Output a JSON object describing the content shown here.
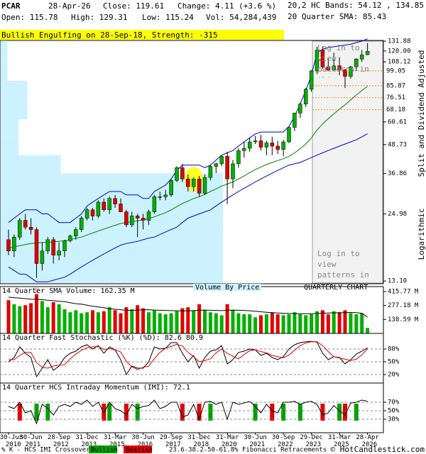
{
  "header": {
    "symbol": "PCAR",
    "date": "28-Apr-26",
    "close": "Close: 119.61",
    "change": "Change: 4.11 (+3.6 %)",
    "open": "Open: 115.78",
    "high": "High: 129.31",
    "low": "Low: 115.24",
    "volume": "Vol: 54,284,439",
    "bands": "20,2 HC Bands: 54.12 , 134.85",
    "bands_color": "#0000cc",
    "sma": "20 Quarter SMA: 85.43",
    "sma_color": "#008000"
  },
  "banner": "Bullish Engulfing on 28-Sep-18, Strength: -315",
  "chart_data": [
    {
      "type": "candlestick",
      "categories": [
        "30-Jun 2010",
        null,
        null,
        null,
        "30-Jun 2011",
        null,
        null,
        null,
        null,
        "28-Sep 2012",
        null,
        null,
        null,
        null,
        "31-Dec 2013",
        null,
        null,
        null,
        null,
        "31-Mar 2015",
        null,
        null,
        null,
        null,
        "30-Jun 2016",
        null,
        null,
        null,
        null,
        "29-Sep 2017",
        null,
        null,
        null,
        null,
        "31-Dec 2018",
        null,
        null,
        null,
        null,
        "31-Mar 2020",
        null,
        null,
        null,
        null,
        "30-Jun 2021",
        null,
        null,
        null,
        null,
        "30-Sep 2022",
        null,
        null,
        null,
        null,
        "29-Dec 2023",
        null,
        null,
        null,
        null,
        "31-Mar 2025",
        null,
        null,
        null,
        null,
        "28-Apr 2026"
      ],
      "open": [
        19.5,
        17.5,
        20.0,
        23.5,
        22.0,
        21.5,
        15.5,
        17.5,
        19.5,
        16.8,
        17.5,
        19.3,
        20.2,
        21.5,
        24.0,
        26.0,
        24.5,
        28.0,
        26.0,
        29.0,
        27.5,
        25.5,
        22.5,
        24.5,
        24.0,
        23.5,
        25.5,
        29.5,
        29.5,
        30.0,
        34.5,
        39.0,
        35.0,
        32.5,
        35.0,
        30.5,
        35.5,
        39.5,
        40.5,
        43.5,
        35.0,
        40.5,
        46.0,
        47.0,
        50.0,
        50.5,
        47.5,
        49.5,
        48.0,
        46.5,
        50.0,
        57.5,
        66.0,
        72.0,
        83.0,
        99.0,
        121.0,
        103.0,
        100.0,
        104.0,
        100.0,
        94.0,
        103.0,
        111.0,
        115.78
      ],
      "high": [
        21.5,
        20.5,
        24.0,
        25.0,
        24.0,
        22.0,
        19.0,
        20.0,
        20.0,
        19.0,
        19.5,
        20.5,
        22.0,
        24.5,
        26.5,
        26.5,
        28.5,
        29.0,
        29.5,
        30.0,
        29.0,
        26.0,
        25.5,
        25.0,
        25.0,
        26.0,
        30.0,
        31.0,
        31.5,
        35.0,
        39.5,
        40.5,
        36.5,
        35.5,
        36.0,
        36.5,
        40.0,
        41.0,
        44.0,
        45.5,
        42.0,
        47.0,
        50.0,
        52.0,
        53.0,
        53.5,
        50.5,
        52.5,
        50.5,
        51.0,
        58.0,
        66.0,
        73.0,
        84.0,
        100.0,
        125.0,
        125.5,
        112.0,
        118.0,
        113.0,
        101.0,
        104.0,
        112.0,
        121.0,
        129.31
      ],
      "low": [
        16.8,
        16.5,
        19.5,
        21.5,
        20.5,
        13.5,
        14.5,
        17.0,
        15.5,
        16.0,
        16.5,
        19.0,
        19.5,
        21.0,
        23.5,
        23.5,
        24.0,
        25.5,
        25.0,
        26.5,
        25.5,
        22.0,
        22.0,
        20.0,
        21.5,
        22.5,
        25.0,
        28.5,
        28.5,
        29.5,
        34.0,
        34.0,
        31.0,
        31.0,
        29.5,
        30.0,
        34.5,
        37.0,
        39.5,
        27.5,
        32.0,
        39.0,
        43.0,
        45.5,
        49.0,
        46.0,
        44.0,
        44.0,
        44.5,
        43.5,
        49.5,
        55.5,
        63.0,
        70.0,
        81.0,
        96.0,
        101.0,
        99.0,
        99.0,
        95.0,
        84.0,
        92.0,
        99.0,
        108.0,
        115.24
      ],
      "close": [
        17.5,
        20.0,
        23.5,
        22.0,
        21.5,
        15.5,
        17.5,
        19.5,
        16.8,
        17.5,
        19.3,
        20.2,
        21.5,
        24.0,
        26.0,
        24.5,
        28.0,
        26.0,
        29.0,
        27.5,
        25.5,
        22.5,
        24.5,
        24.0,
        23.5,
        25.5,
        29.5,
        29.5,
        30.0,
        34.5,
        39.0,
        35.0,
        32.5,
        35.0,
        30.5,
        35.5,
        39.5,
        40.5,
        43.5,
        35.0,
        40.5,
        46.0,
        47.0,
        50.0,
        50.5,
        47.5,
        49.5,
        48.0,
        46.5,
        50.0,
        57.5,
        66.0,
        72.0,
        83.0,
        99.0,
        121.0,
        103.0,
        100.0,
        104.0,
        100.0,
        94.0,
        103.0,
        111.0,
        115.5,
        119.61
      ],
      "up_color": "#00b000",
      "down_color": "#e00000",
      "ylim": [
        12.76,
        132.8
      ],
      "log_scale": true,
      "yticks": [
        131.88,
        {
          "value": 120,
          "label": "120.00"
        },
        108.12,
        60.61,
        48.73,
        36.86,
        24.98,
        {
          "value": 13.1,
          "label": "13.10"
        }
      ],
      "overlays": [
        {
          "color": "#0000cc",
          "values": [
            23,
            24,
            25,
            26,
            26,
            26,
            25,
            25,
            24,
            23,
            23,
            23,
            24,
            25,
            27,
            28,
            29,
            30,
            31,
            31,
            31,
            30,
            30,
            30,
            29,
            29,
            31,
            32,
            33,
            35,
            38,
            40,
            40,
            40,
            40,
            39,
            40,
            42,
            44,
            45,
            46,
            48,
            50,
            52,
            54,
            55,
            55,
            55,
            55,
            55,
            58,
            64,
            72,
            82,
            95,
            118,
            122,
            124,
            125,
            126,
            127,
            128,
            130,
            132,
            134.85
          ]
        },
        {
          "color": "#0000cc",
          "values": [
            15,
            14.5,
            14,
            14,
            13.5,
            13,
            13,
            13,
            13.2,
            13.4,
            13.6,
            14,
            14.5,
            15,
            15.5,
            16,
            16.5,
            17,
            17.5,
            18,
            18.5,
            18.8,
            19,
            19.2,
            19.5,
            19.8,
            20,
            20.5,
            21,
            21.5,
            22,
            23,
            24,
            24.5,
            25,
            25.5,
            26,
            27,
            28,
            29,
            30,
            31,
            32,
            33,
            34,
            35,
            36,
            37,
            38,
            39,
            40,
            40.5,
            41,
            42,
            43,
            44,
            45,
            46,
            47,
            48,
            49,
            50,
            51,
            52.5,
            54.12
          ]
        },
        {
          "color": "#008000",
          "values": [
            18,
            18.2,
            18.4,
            18.6,
            18.8,
            18.9,
            19,
            19,
            19.1,
            19.2,
            19.3,
            19.5,
            19.8,
            20,
            20.4,
            20.8,
            21.2,
            21.6,
            22,
            22.4,
            22.8,
            23,
            23.2,
            23.4,
            23.6,
            23.9,
            24.3,
            24.8,
            25.3,
            26,
            26.8,
            27.6,
            28.3,
            29,
            29.5,
            30.2,
            31,
            31.8,
            32.7,
            33.3,
            34,
            35,
            36,
            37.2,
            38.3,
            39.3,
            40.2,
            41,
            41.8,
            42.5,
            43.5,
            45,
            46.8,
            49,
            52,
            56,
            59.5,
            62.5,
            65.5,
            68.5,
            71.5,
            75,
            78.5,
            82,
            85.43
          ]
        }
      ],
      "fib_levels": [
        99.05,
        85.87,
        76.51,
        68.18
      ],
      "fib_color": "#ff8c00",
      "volume_by_price": {
        "bins": [
          12.8,
          15.5,
          18.5,
          22,
          26,
          31,
          37,
          44,
          52,
          62,
          75,
          90,
          110,
          132.5
        ],
        "values": [
          100,
          100,
          100,
          100,
          100,
          100,
          27,
          8,
          8,
          12,
          12,
          3,
          3
        ],
        "color": "#ccf2ff"
      },
      "highlight_x": 33,
      "highlight_color": "#ffff00",
      "annotation": "Log in to view patterns in this area",
      "side_labels": [
        "Split and Dividend Adjusted",
        "Logarithmic"
      ]
    },
    {
      "type": "bar",
      "title": "14 Quarter SMA Volume: 162.35 M",
      "label": "Volume By Price",
      "note": "QUARTERLY CHART",
      "values": [
        330,
        290,
        270,
        280,
        300,
        455,
        320,
        260,
        310,
        290,
        240,
        210,
        230,
        200,
        210,
        230,
        210,
        220,
        260,
        230,
        200,
        260,
        240,
        280,
        250,
        210,
        230,
        200,
        190,
        200,
        220,
        250,
        260,
        230,
        290,
        230,
        210,
        200,
        180,
        290,
        230,
        200,
        190,
        190,
        160,
        180,
        190,
        210,
        190,
        180,
        190,
        210,
        190,
        180,
        190,
        220,
        230,
        190,
        220,
        210,
        230,
        200,
        190,
        200,
        54.28
      ],
      "sma": [
        360,
        355,
        350,
        345,
        340,
        338,
        335,
        330,
        325,
        320,
        315,
        305,
        295,
        290,
        280,
        270,
        262,
        255,
        245,
        240,
        235,
        230,
        228,
        232,
        234,
        235,
        232,
        230,
        228,
        226,
        225,
        224,
        225,
        226,
        230,
        232,
        230,
        228,
        226,
        230,
        232,
        230,
        228,
        225,
        220,
        215,
        210,
        206,
        203,
        200,
        198,
        197,
        196,
        195,
        196,
        198,
        200,
        202,
        204,
        205,
        206,
        208,
        206,
        200,
        162.35
      ],
      "sma_color": "#000000",
      "ylim": [
        0,
        465
      ],
      "yticks": [
        {
          "value": 415.77,
          "label": "415.77 M"
        },
        {
          "value": 277.18,
          "label": "277.18 M"
        },
        {
          "value": 138.59,
          "label": "138.59 M"
        }
      ]
    },
    {
      "type": "line",
      "title": "14 Quarter Fast Stochastic (%K) (%D): 82.6 80.9",
      "series": [
        {
          "color": "#000000",
          "values": [
            50,
            60,
            85,
            70,
            60,
            15,
            35,
            55,
            30,
            40,
            60,
            70,
            75,
            85,
            90,
            80,
            88,
            70,
            85,
            78,
            55,
            20,
            40,
            35,
            35,
            50,
            85,
            80,
            82,
            95,
            95,
            70,
            50,
            65,
            35,
            60,
            75,
            78,
            88,
            45,
            55,
            72,
            75,
            80,
            78,
            65,
            70,
            60,
            55,
            62,
            80,
            90,
            95,
            97,
            98,
            96,
            70,
            55,
            62,
            60,
            45,
            55,
            68,
            75,
            82.6
          ]
        },
        {
          "color": "#e00000",
          "values": [
            55,
            55,
            65,
            72,
            72,
            48,
            37,
            35,
            40,
            42,
            43,
            57,
            68,
            77,
            83,
            85,
            86,
            79,
            81,
            78,
            73,
            51,
            38,
            32,
            37,
            40,
            57,
            72,
            82,
            86,
            91,
            87,
            72,
            62,
            50,
            53,
            57,
            71,
            80,
            70,
            63,
            57,
            67,
            76,
            78,
            74,
            71,
            65,
            62,
            59,
            66,
            77,
            88,
            94,
            97,
            97,
            88,
            74,
            62,
            59,
            56,
            53,
            56,
            66,
            80.9
          ]
        }
      ],
      "ylim": [
        0,
        100
      ],
      "grid": true,
      "yticks": [
        {
          "value": 80,
          "label": "80%"
        },
        {
          "value": 50,
          "label": "50%"
        },
        {
          "value": 20,
          "label": "20%"
        }
      ]
    },
    {
      "type": "line",
      "title": "14 Quarter HCS Intraday Momentum (IMI): 72.1",
      "values": [
        60,
        55,
        70,
        45,
        50,
        20,
        65,
        55,
        40,
        60,
        65,
        60,
        70,
        65,
        75,
        60,
        70,
        45,
        70,
        55,
        50,
        40,
        65,
        55,
        60,
        62,
        75,
        55,
        60,
        70,
        70,
        35,
        40,
        65,
        30,
        70,
        72,
        65,
        70,
        30,
        70,
        65,
        68,
        72,
        60,
        45,
        65,
        50,
        45,
        70,
        70,
        72,
        65,
        70,
        72,
        65,
        40,
        45,
        62,
        50,
        40,
        68,
        70,
        75,
        72.1
      ],
      "color": "#000000",
      "signals": [
        {
          "name": "Bullish",
          "color": "#00a000",
          "x": [
            5,
            7,
            18,
            23,
            36,
            44,
            49,
            52,
            59,
            62
          ]
        },
        {
          "name": "Bearish",
          "color": "#e00000",
          "x": [
            2,
            17,
            21,
            31,
            34,
            47,
            56,
            60
          ]
        }
      ],
      "ylim": [
        0,
        100
      ],
      "grid": true,
      "yticks": [
        {
          "value": 70,
          "label": "70%"
        },
        {
          "value": 50,
          "label": "50%"
        },
        {
          "value": 30,
          "label": "30%"
        }
      ]
    }
  ],
  "footer": {
    "crossover": "% K - HCS IMI Crossover,",
    "fibonacci": "23.6-38.2-50-61.8% Fibonacci Retracements",
    "fib_color": "#e08000",
    "credit": "© HotCandlestick.com"
  }
}
